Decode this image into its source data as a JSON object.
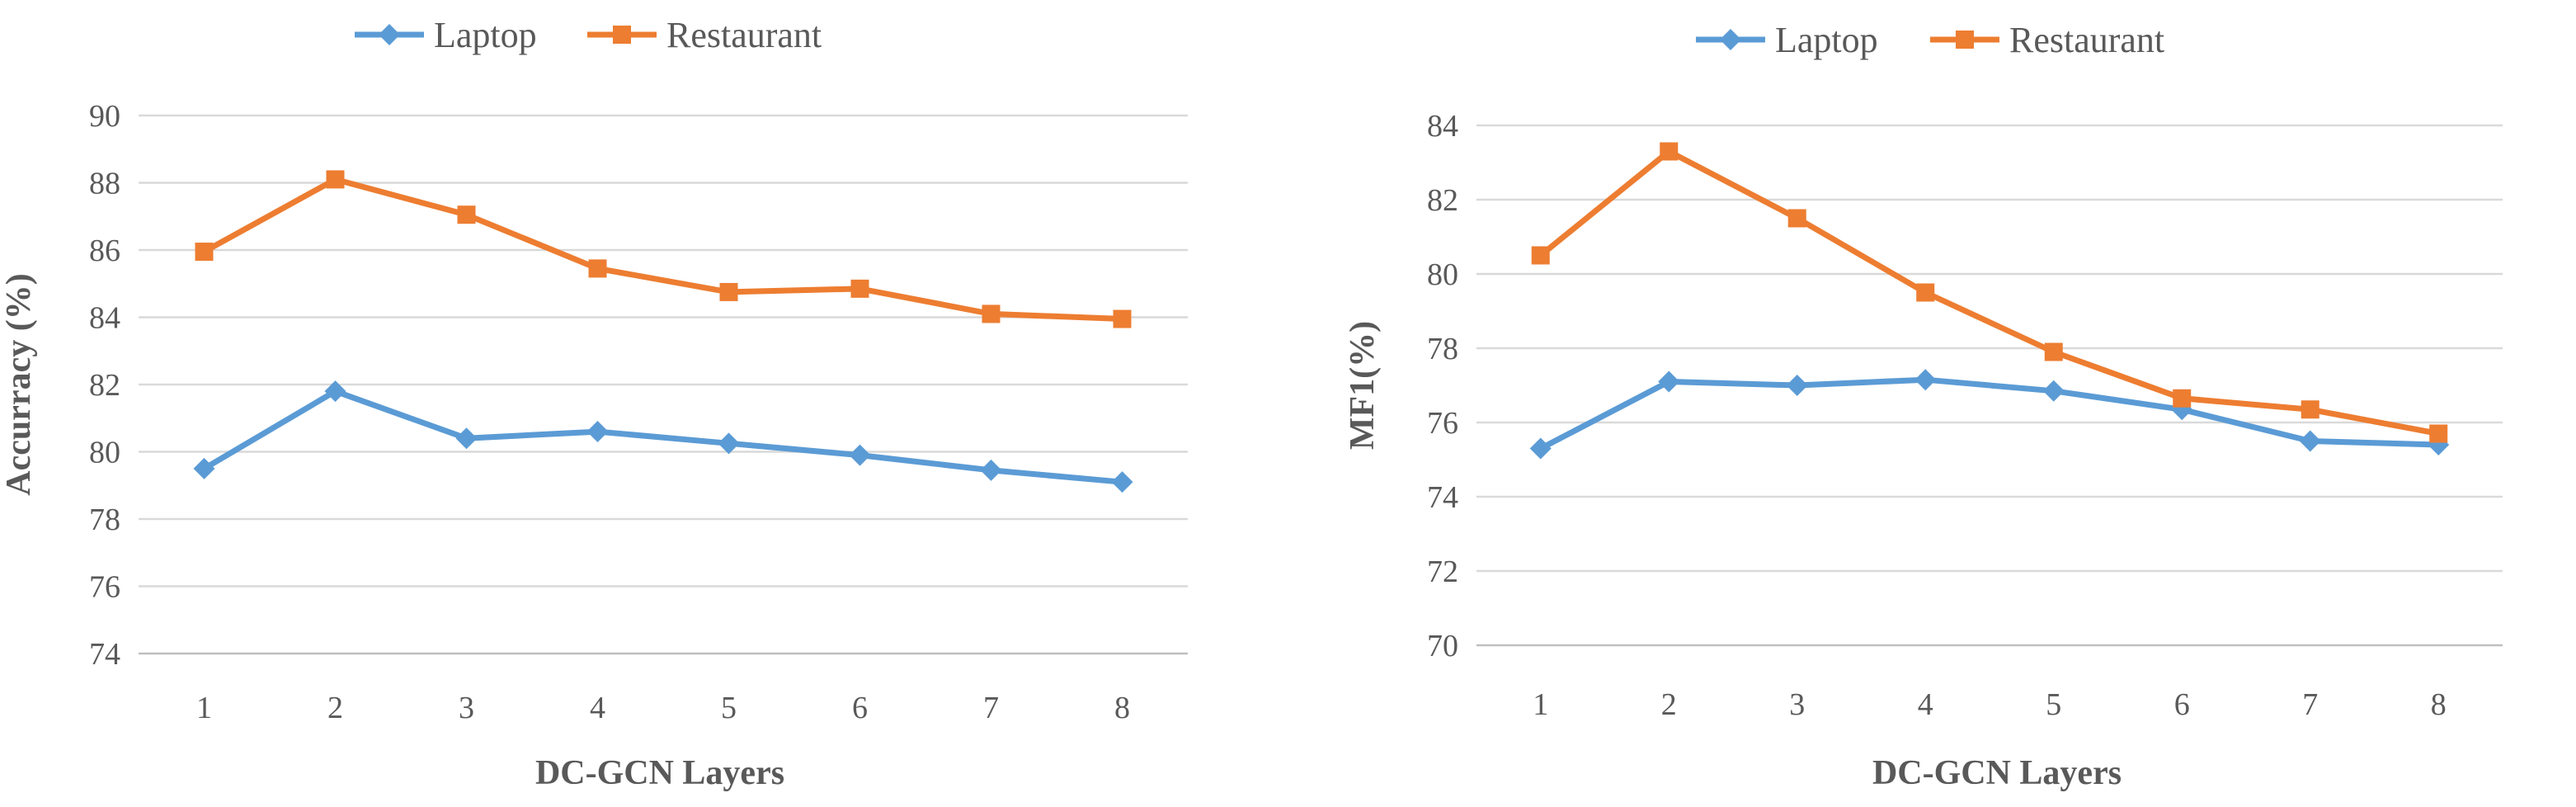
{
  "chart_data": [
    {
      "type": "line",
      "title": "",
      "xlabel": "DC-GCN Layers",
      "ylabel": "Accurracy (%)",
      "categories": [
        "1",
        "2",
        "3",
        "4",
        "5",
        "6",
        "7",
        "8"
      ],
      "ylim": [
        74,
        90
      ],
      "yticks": [
        "74",
        "76",
        "78",
        "80",
        "82",
        "84",
        "86",
        "88",
        "90"
      ],
      "grid": true,
      "legend_position": "top",
      "series": [
        {
          "name": "Laptop",
          "color": "#5b9bd5",
          "marker": "diamond",
          "values": [
            79.5,
            81.8,
            80.4,
            80.6,
            80.25,
            79.9,
            79.45,
            79.1
          ]
        },
        {
          "name": "Restaurant",
          "color": "#ed7d31",
          "marker": "square",
          "values": [
            85.95,
            88.1,
            87.05,
            85.45,
            84.75,
            84.85,
            84.1,
            83.95
          ]
        }
      ]
    },
    {
      "type": "line",
      "title": "",
      "xlabel": "DC-GCN Layers",
      "ylabel": "MF1(%)",
      "categories": [
        "1",
        "2",
        "3",
        "4",
        "5",
        "6",
        "7",
        "8"
      ],
      "ylim": [
        70,
        84
      ],
      "yticks": [
        "70",
        "72",
        "74",
        "76",
        "78",
        "80",
        "82",
        "84"
      ],
      "grid": true,
      "legend_position": "top",
      "series": [
        {
          "name": "Laptop",
          "color": "#5b9bd5",
          "marker": "diamond",
          "values": [
            75.3,
            77.1,
            77.0,
            77.15,
            76.85,
            76.35,
            75.5,
            75.4
          ]
        },
        {
          "name": "Restaurant",
          "color": "#ed7d31",
          "marker": "square",
          "values": [
            80.5,
            83.3,
            81.5,
            79.5,
            77.9,
            76.65,
            76.35,
            75.7
          ]
        }
      ]
    }
  ]
}
